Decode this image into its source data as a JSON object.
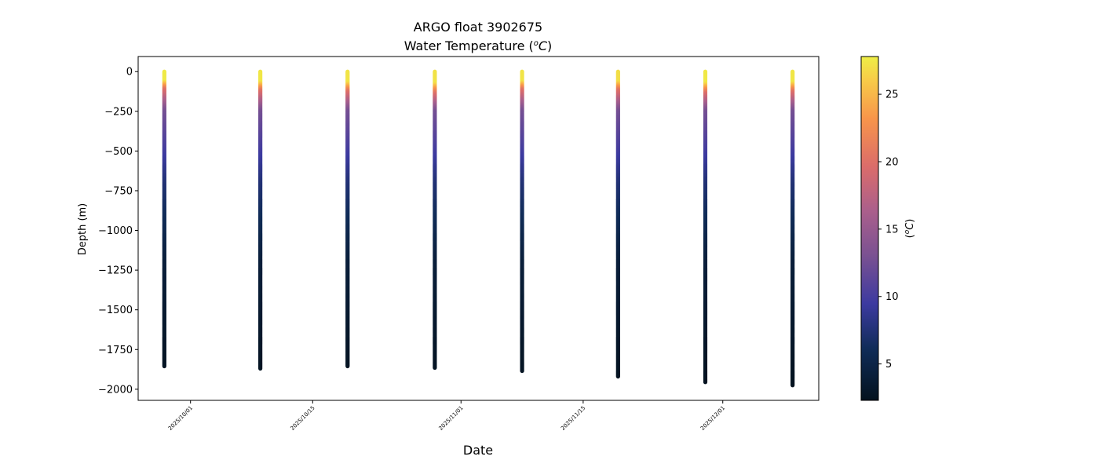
{
  "chart_data": {
    "type": "scatter",
    "title": "ARGO float 3902675",
    "subtitle": "Water Temperature (ᴼC)",
    "title_main": "ARGO float 3902675",
    "title_sub_text": "Water Temperature (",
    "title_sub_unit": "C",
    "title_sub_close": ")",
    "xlabel": "Date",
    "ylabel": "Depth (m)",
    "colorbar_label_open": "(",
    "colorbar_label_unit": "C",
    "colorbar_label_close": ")",
    "ylim": [
      -2070,
      95
    ],
    "xlim": [
      "2025-09-25",
      "2025-12-12"
    ],
    "clim": [
      2.3,
      27.8
    ],
    "colormap": "thermal",
    "x_ticks": [
      "2025/10/01",
      "2025/10/15",
      "2025/11/01",
      "2025/11/15",
      "2025/12/01"
    ],
    "y_ticks": [
      0,
      -250,
      -500,
      -750,
      -1000,
      -1250,
      -1500,
      -1750,
      -2000
    ],
    "y_tick_labels": [
      "0",
      "−250",
      "−500",
      "−750",
      "−1000",
      "−1250",
      "−1500",
      "−1750",
      "−2000"
    ],
    "colorbar_ticks": [
      5,
      10,
      15,
      20,
      25
    ],
    "profiles": [
      {
        "date": "2025-09-28",
        "max_depth": -1855,
        "surface_temp": 27.6,
        "thermocline_depth": -100
      },
      {
        "date": "2025-10-09",
        "max_depth": -1870,
        "surface_temp": 27.4,
        "thermocline_depth": -110
      },
      {
        "date": "2025-10-19",
        "max_depth": -1858,
        "surface_temp": 27.3,
        "thermocline_depth": -115
      },
      {
        "date": "2025-10-29",
        "max_depth": -1865,
        "surface_temp": 27.2,
        "thermocline_depth": -125
      },
      {
        "date": "2025-11-08",
        "max_depth": -1885,
        "surface_temp": 27.3,
        "thermocline_depth": -105
      },
      {
        "date": "2025-11-19",
        "max_depth": -1920,
        "surface_temp": 27.0,
        "thermocline_depth": -110
      },
      {
        "date": "2025-11-29",
        "max_depth": -1955,
        "surface_temp": 27.5,
        "thermocline_depth": -120
      },
      {
        "date": "2025-12-09",
        "max_depth": -1975,
        "surface_temp": 27.4,
        "thermocline_depth": -115
      }
    ],
    "grid": false
  }
}
